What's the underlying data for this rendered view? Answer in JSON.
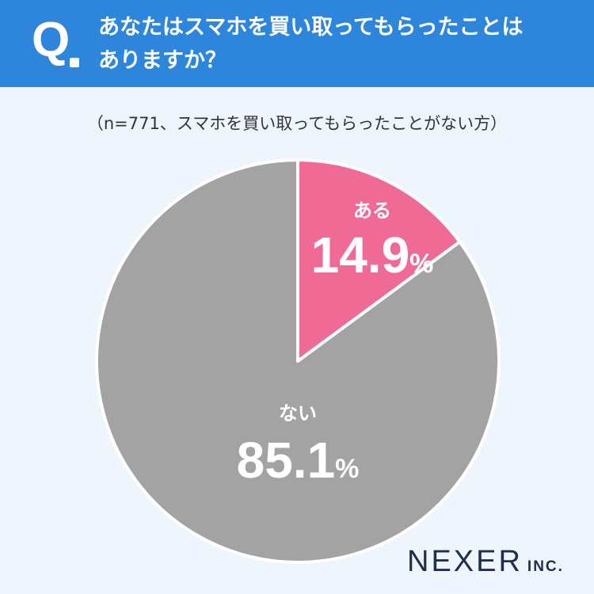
{
  "header": {
    "q_label": "Q",
    "question_lines": [
      "あなたはスマホを買い取ってもらったことは",
      "ありますか？"
    ]
  },
  "subtitle": "（n=771、スマホを買い取ってもらったことがない方）",
  "brand": {
    "name": "NEXER",
    "suffix": "INC."
  },
  "colors": {
    "header": "#2d86dc",
    "yes": "#ef6b95",
    "no": "#a3a3a3",
    "background": "#eef5fd"
  },
  "chart_data": {
    "type": "pie",
    "categories": [
      "ある",
      "ない"
    ],
    "values": [
      14.9,
      85.1
    ],
    "unit": "%",
    "start": "top",
    "direction": "clockwise"
  }
}
